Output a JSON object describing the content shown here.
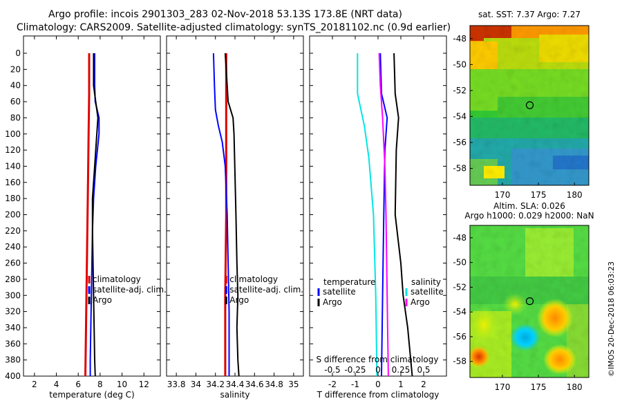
{
  "title": {
    "line1": "Argo profile: incois 2901303_283 02-Nov-2018 53.13S 173.8E (NRT data)",
    "line2": "Climatology: CARS2009. Satellite-adjusted climatology: synTS_20181102.nc (0.9d earlier)"
  },
  "timestamp": "©IMOS 20-Dec-2018 06:03:23",
  "colors": {
    "climatology": "#e00000",
    "satellite": "#0000ff",
    "argo": "#000000",
    "s_satellite": "#00e5e5",
    "s_argo": "#ff00ff"
  },
  "chart_data": [
    {
      "type": "line",
      "panel": "temperature",
      "xlabel": "temperature (deg C)",
      "ylabel": "",
      "xlim": [
        1,
        13.5
      ],
      "ylim": [
        400,
        0
      ],
      "xticks": [
        2,
        4,
        6,
        8,
        10,
        12
      ],
      "yticks": [
        0,
        20,
        40,
        60,
        80,
        100,
        120,
        140,
        160,
        180,
        200,
        220,
        240,
        260,
        280,
        300,
        320,
        340,
        360,
        380,
        400
      ],
      "legend": [
        "climatology",
        "satellite-adj. clim.",
        "Argo"
      ],
      "series": [
        {
          "name": "climatology",
          "color": "#e00000",
          "points": [
            [
              7.0,
              0
            ],
            [
              7.0,
              50
            ],
            [
              6.95,
              100
            ],
            [
              6.9,
              150
            ],
            [
              6.85,
              200
            ],
            [
              6.8,
              250
            ],
            [
              6.75,
              300
            ],
            [
              6.7,
              350
            ],
            [
              6.65,
              400
            ]
          ]
        },
        {
          "name": "satellite-adj. clim.",
          "color": "#0000ff",
          "points": [
            [
              7.5,
              0
            ],
            [
              7.5,
              40
            ],
            [
              7.55,
              60
            ],
            [
              7.9,
              80
            ],
            [
              7.9,
              100
            ],
            [
              7.6,
              140
            ],
            [
              7.4,
              180
            ],
            [
              7.3,
              220
            ],
            [
              7.25,
              260
            ],
            [
              7.2,
              300
            ],
            [
              7.15,
              340
            ],
            [
              7.1,
              380
            ],
            [
              7.1,
              400
            ]
          ]
        },
        {
          "name": "Argo",
          "color": "#000000",
          "points": [
            [
              7.4,
              0
            ],
            [
              7.4,
              40
            ],
            [
              7.6,
              60
            ],
            [
              7.8,
              80
            ],
            [
              7.7,
              100
            ],
            [
              7.5,
              140
            ],
            [
              7.3,
              180
            ],
            [
              7.3,
              220
            ],
            [
              7.35,
              260
            ],
            [
              7.4,
              300
            ],
            [
              7.45,
              340
            ],
            [
              7.5,
              380
            ],
            [
              7.55,
              400
            ]
          ]
        }
      ]
    },
    {
      "type": "line",
      "panel": "salinity",
      "xlabel": "salinity",
      "xlim": [
        33.7,
        35.1
      ],
      "ylim": [
        400,
        0
      ],
      "xticks": [
        33.8,
        34,
        34.2,
        34.4,
        34.6,
        34.8,
        35
      ],
      "legend": [
        "climatology",
        "satellite-adj. clim.",
        "Argo"
      ],
      "series": [
        {
          "name": "climatology",
          "color": "#e00000",
          "points": [
            [
              34.31,
              0
            ],
            [
              34.31,
              100
            ],
            [
              34.31,
              200
            ],
            [
              34.3,
              300
            ],
            [
              34.3,
              400
            ]
          ]
        },
        {
          "name": "satellite-adj. clim.",
          "color": "#0000ff",
          "points": [
            [
              34.18,
              0
            ],
            [
              34.19,
              40
            ],
            [
              34.2,
              70
            ],
            [
              34.23,
              90
            ],
            [
              34.27,
              110
            ],
            [
              34.3,
              140
            ],
            [
              34.32,
              200
            ],
            [
              34.33,
              260
            ],
            [
              34.34,
              320
            ],
            [
              34.34,
              400
            ]
          ]
        },
        {
          "name": "Argo",
          "color": "#000000",
          "points": [
            [
              34.3,
              0
            ],
            [
              34.32,
              40
            ],
            [
              34.33,
              60
            ],
            [
              34.38,
              80
            ],
            [
              34.39,
              100
            ],
            [
              34.4,
              150
            ],
            [
              34.41,
              200
            ],
            [
              34.42,
              260
            ],
            [
              34.43,
              300
            ],
            [
              34.42,
              340
            ],
            [
              34.43,
              380
            ],
            [
              34.44,
              400
            ]
          ]
        }
      ]
    },
    {
      "type": "line",
      "panel": "difference",
      "xlabel": "T difference from climatology",
      "x2label": "S difference from climatology",
      "xlim": [
        -3,
        3
      ],
      "ylim": [
        400,
        0
      ],
      "xticks": [
        -2,
        -1,
        0,
        1,
        2
      ],
      "x2ticks": [
        "-0.5",
        "-0.25",
        "0",
        "0.25",
        "0.5"
      ],
      "x2tick_positions": [
        -2,
        -1,
        0,
        1,
        2
      ],
      "legend_temperature_title": "temperature",
      "legend_salinity_title": "salinity",
      "legend_items": [
        "satellite",
        "Argo"
      ],
      "series": [
        {
          "name": "T satellite",
          "color": "#0000ff",
          "points": [
            [
              0.1,
              0
            ],
            [
              0.15,
              50
            ],
            [
              0.4,
              80
            ],
            [
              0.3,
              120
            ],
            [
              0.25,
              200
            ],
            [
              0.2,
              300
            ],
            [
              0.15,
              400
            ]
          ]
        },
        {
          "name": "T Argo",
          "color": "#000000",
          "points": [
            [
              0.7,
              0
            ],
            [
              0.75,
              50
            ],
            [
              0.9,
              80
            ],
            [
              0.8,
              120
            ],
            [
              0.75,
              200
            ],
            [
              1.0,
              260
            ],
            [
              1.1,
              300
            ],
            [
              1.3,
              340
            ],
            [
              1.5,
              400
            ]
          ]
        },
        {
          "name": "S satellite",
          "color": "#00e5e5",
          "points": [
            [
              -0.9,
              0
            ],
            [
              -0.9,
              50
            ],
            [
              -0.6,
              90
            ],
            [
              -0.4,
              130
            ],
            [
              -0.2,
              200
            ],
            [
              -0.1,
              300
            ],
            [
              -0.05,
              400
            ]
          ]
        },
        {
          "name": "S Argo",
          "color": "#ff00ff",
          "points": [
            [
              0.05,
              0
            ],
            [
              0.1,
              40
            ],
            [
              0.2,
              80
            ],
            [
              0.3,
              140
            ],
            [
              0.35,
              200
            ],
            [
              0.4,
              300
            ],
            [
              0.45,
              400
            ]
          ]
        }
      ]
    },
    {
      "type": "heatmap",
      "panel": "sst-map",
      "title": "sat. SST: 7.37 Argo: 7.27",
      "xticks": [
        "170",
        "175",
        "180"
      ],
      "yticks": [
        "-48",
        "-50",
        "-52",
        "-54",
        "-56",
        "-58"
      ],
      "xlim": [
        165.5,
        182
      ],
      "ylim": [
        -59.3,
        -47
      ],
      "marker": {
        "lon": 173.8,
        "lat": -53.13
      }
    },
    {
      "type": "heatmap",
      "panel": "sla-map",
      "title_line1": "Altim. SLA: 0.026",
      "title_line2": "Argo h1000: 0.029 h2000: NaN",
      "xticks": [
        "170",
        "175",
        "180"
      ],
      "yticks": [
        "-48",
        "-50",
        "-52",
        "-54",
        "-56",
        "-58"
      ],
      "xlim": [
        165.5,
        182
      ],
      "ylim": [
        -59.3,
        -47
      ],
      "marker": {
        "lon": 173.8,
        "lat": -53.13
      }
    }
  ]
}
